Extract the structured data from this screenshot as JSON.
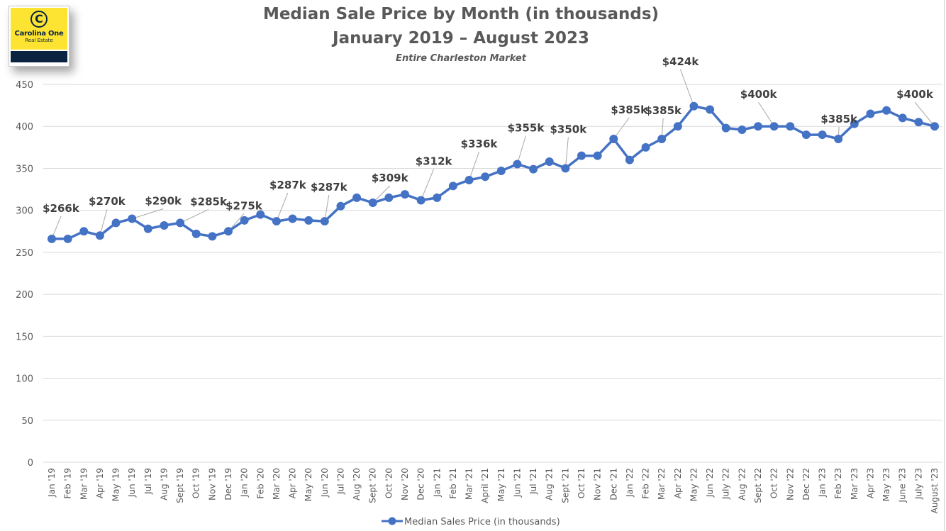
{
  "logo": {
    "glyph": "C",
    "name": "Carolina One",
    "sub": "Real Estate"
  },
  "chart_data": {
    "type": "line",
    "title": "Median Sale Price by Month (in thousands)",
    "title_line2": "January 2019 – August 2023",
    "subtitle": "Entire Charleston Market",
    "xlabel": "",
    "ylabel": "",
    "ylim": [
      0,
      450
    ],
    "yticks": [
      0,
      50,
      100,
      150,
      200,
      250,
      300,
      350,
      400,
      450
    ],
    "grid": true,
    "legend_position": "bottom",
    "color": "#4472c4",
    "categories": [
      "Jan '19",
      "Feb '19",
      "Mar '19",
      "Apr '19",
      "May '19",
      "Jun '19",
      "Jul '19",
      "Aug '19",
      "Sept '19",
      "Oct '19",
      "Nov '19",
      "Dec '19",
      "Jan '20",
      "Feb '20",
      "Mar '20",
      "Apr '20",
      "May '20",
      "Jun '20",
      "Jul '20",
      "Aug '20",
      "Sept '20",
      "Oct '20",
      "Nov '20",
      "Dec '20",
      "Jan '21",
      "Feb '21",
      "Mar '21",
      "April '21",
      "May '21",
      "Jun '21",
      "Jul '21",
      "Aug '21",
      "Sept '21",
      "Oct '21",
      "Nov '21",
      "Dec '21",
      "Jan '22",
      "Feb '22",
      "Mar '22",
      "Apr '22",
      "May '22",
      "Jun '22",
      "July '22",
      "Aug '22",
      "Sept '22",
      "Oct '22",
      "Nov '22",
      "Dec '22",
      "Jan '23",
      "Feb '23",
      "Mar '23",
      "Apr '23",
      "May '23",
      "June '23",
      "July '23",
      "August '23"
    ],
    "series": [
      {
        "name": "Median Sales Price (in thousands)",
        "values": [
          266,
          266,
          275,
          270,
          285,
          290,
          278,
          282,
          285,
          272,
          269,
          275,
          288,
          295,
          287,
          290,
          288,
          287,
          305,
          315,
          309,
          315,
          319,
          312,
          315,
          329,
          336,
          340,
          347,
          355,
          349,
          358,
          350,
          365,
          365,
          385,
          360,
          375,
          385,
          400,
          424,
          420,
          398,
          396,
          400,
          400,
          400,
          390,
          390,
          385,
          403,
          415,
          419,
          410,
          405,
          400
        ]
      }
    ],
    "annotations": [
      {
        "index": 0,
        "text": "$266k"
      },
      {
        "index": 3,
        "text": "$270k"
      },
      {
        "index": 5,
        "text": "$290k"
      },
      {
        "index": 8,
        "text": "$285k"
      },
      {
        "index": 11,
        "text": "$275k"
      },
      {
        "index": 14,
        "text": "$287k"
      },
      {
        "index": 17,
        "text": "$287k"
      },
      {
        "index": 20,
        "text": "$309k"
      },
      {
        "index": 23,
        "text": "$312k"
      },
      {
        "index": 26,
        "text": "$336k"
      },
      {
        "index": 29,
        "text": "$355k"
      },
      {
        "index": 32,
        "text": "$350k"
      },
      {
        "index": 35,
        "text": "$385k"
      },
      {
        "index": 38,
        "text": "$385k"
      },
      {
        "index": 40,
        "text": "$424k"
      },
      {
        "index": 45,
        "text": "$400k"
      },
      {
        "index": 49,
        "text": "$385k"
      },
      {
        "index": 55,
        "text": "$400k"
      }
    ]
  }
}
